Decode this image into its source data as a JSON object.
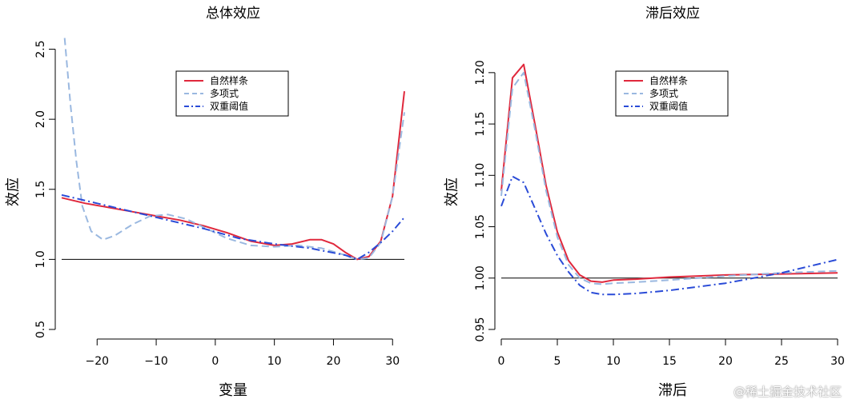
{
  "chart_data": [
    {
      "type": "line",
      "title": "总体效应",
      "xlabel": "变量",
      "ylabel": "效应",
      "xlim": [
        -26,
        32
      ],
      "ylim": [
        0.5,
        2.6
      ],
      "xticks": [
        -20,
        -10,
        0,
        10,
        20,
        30
      ],
      "xtick_labels": [
        "−20",
        "−10",
        "0",
        "10",
        "20",
        "30"
      ],
      "yticks": [
        0.5,
        1.0,
        1.5,
        2.0,
        2.5
      ],
      "ytick_labels": [
        "0.5",
        "1.0",
        "1.5",
        "2.0",
        "2.5"
      ],
      "hline": 1.0,
      "legend_position": "top-center",
      "grid": false,
      "series": [
        {
          "name": "自然样条",
          "color": "#e0283c",
          "dash": "solid",
          "x": [
            -26,
            -22,
            -18,
            -14,
            -10,
            -6,
            -2,
            2,
            6,
            10,
            13,
            16,
            18,
            20,
            22,
            24,
            26,
            28,
            30,
            32
          ],
          "y": [
            1.44,
            1.4,
            1.37,
            1.34,
            1.31,
            1.28,
            1.24,
            1.19,
            1.13,
            1.1,
            1.11,
            1.14,
            1.14,
            1.11,
            1.05,
            1.0,
            1.02,
            1.13,
            1.45,
            2.2
          ]
        },
        {
          "name": "多项式",
          "color": "#9ab8e0",
          "dash": "dashed",
          "x": [
            -25.5,
            -24.5,
            -23.5,
            -22.5,
            -21,
            -19,
            -17,
            -14,
            -11,
            -8,
            -5,
            -2,
            2,
            6,
            10,
            14,
            18,
            22,
            24,
            26,
            28,
            30,
            32
          ],
          "y": [
            2.58,
            2.1,
            1.7,
            1.38,
            1.2,
            1.14,
            1.17,
            1.25,
            1.31,
            1.32,
            1.29,
            1.23,
            1.15,
            1.1,
            1.09,
            1.1,
            1.08,
            1.03,
            1.0,
            1.01,
            1.12,
            1.45,
            2.05
          ]
        },
        {
          "name": "双重阈值",
          "color": "#2a4bd7",
          "dash": "dashdot",
          "x": [
            -26,
            -20,
            -14,
            -8,
            -2,
            4,
            10,
            16,
            22,
            24,
            26,
            28,
            30,
            32
          ],
          "y": [
            1.46,
            1.4,
            1.34,
            1.28,
            1.22,
            1.15,
            1.11,
            1.08,
            1.03,
            1.0,
            1.05,
            1.12,
            1.2,
            1.3
          ]
        }
      ]
    },
    {
      "type": "line",
      "title": "滞后效应",
      "xlabel": "滞后",
      "ylabel": "效应",
      "xlim": [
        0,
        30
      ],
      "ylim": [
        0.95,
        1.21
      ],
      "xticks": [
        0,
        5,
        10,
        15,
        20,
        25,
        30
      ],
      "xtick_labels": [
        "0",
        "5",
        "10",
        "15",
        "20",
        "25",
        "30"
      ],
      "yticks": [
        0.95,
        1.0,
        1.05,
        1.1,
        1.15,
        1.2
      ],
      "ytick_labels": [
        "0.95",
        "1.00",
        "1.05",
        "1.10",
        "1.15",
        "1.20"
      ],
      "hline": 1.0,
      "legend_position": "top-center",
      "grid": false,
      "series": [
        {
          "name": "自然样条",
          "color": "#e0283c",
          "dash": "solid",
          "x": [
            0,
            1,
            2,
            3,
            4,
            5,
            6,
            7,
            8,
            9,
            10,
            12,
            15,
            20,
            25,
            30
          ],
          "y": [
            1.085,
            1.195,
            1.208,
            1.15,
            1.09,
            1.045,
            1.017,
            1.003,
            0.997,
            0.996,
            0.998,
            0.999,
            1.001,
            1.003,
            1.004,
            1.005
          ]
        },
        {
          "name": "多项式",
          "color": "#9ab8e0",
          "dash": "dashed",
          "x": [
            0,
            1,
            2,
            3,
            4,
            5,
            6,
            7,
            8,
            9,
            10,
            12,
            15,
            20,
            25,
            30
          ],
          "y": [
            1.08,
            1.185,
            1.2,
            1.145,
            1.085,
            1.04,
            1.013,
            1.0,
            0.995,
            0.994,
            0.995,
            0.996,
            0.998,
            1.002,
            1.005,
            1.007
          ]
        },
        {
          "name": "双重阈值",
          "color": "#2a4bd7",
          "dash": "dashdot",
          "x": [
            0,
            1,
            2,
            3,
            4,
            5,
            6,
            7,
            8,
            9,
            10,
            12,
            15,
            20,
            25,
            30
          ],
          "y": [
            1.07,
            1.099,
            1.093,
            1.068,
            1.043,
            1.022,
            1.006,
            0.993,
            0.986,
            0.984,
            0.984,
            0.985,
            0.988,
            0.995,
            1.005,
            1.018
          ]
        }
      ]
    }
  ],
  "watermark": "@稀土掘金技术社区"
}
